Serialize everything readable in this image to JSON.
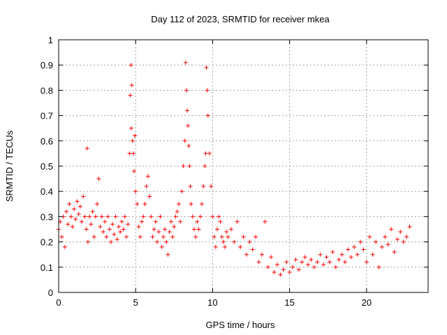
{
  "chart_data": {
    "type": "scatter",
    "title": "Day 112 of 2023, SRMTID for receiver mkea",
    "xlabel": "GPS time / hours",
    "ylabel": "SRMTID / TECUs",
    "xlim": [
      0,
      24
    ],
    "ylim": [
      0,
      1
    ],
    "xticks": [
      0,
      5,
      10,
      15,
      20
    ],
    "xtick_labels": [
      "0",
      "5",
      "10",
      "15",
      "20"
    ],
    "yticks": [
      0,
      0.1,
      0.2,
      0.3,
      0.4,
      0.5,
      0.6,
      0.7,
      0.8,
      0.9,
      1
    ],
    "ytick_labels": [
      "0",
      "0.1",
      "0.2",
      "0.3",
      "0.4",
      "0.5",
      "0.6",
      "0.7",
      "0.8",
      "0.9",
      "1"
    ],
    "grid": true,
    "marker": "+",
    "color": "#ff0000",
    "series": [
      {
        "name": "SRMTID",
        "x": [
          0.0,
          0.1,
          0.2,
          0.3,
          0.4,
          0.5,
          0.6,
          0.7,
          0.8,
          0.9,
          1.0,
          1.1,
          1.2,
          1.3,
          1.4,
          1.5,
          1.6,
          1.7,
          1.8,
          1.85,
          1.9,
          2.0,
          2.1,
          2.2,
          2.3,
          2.4,
          2.5,
          2.6,
          2.7,
          2.8,
          2.9,
          3.0,
          3.1,
          3.2,
          3.3,
          3.4,
          3.5,
          3.6,
          3.7,
          3.8,
          3.9,
          4.0,
          4.1,
          4.2,
          4.3,
          4.4,
          4.5,
          4.6,
          4.65,
          4.7,
          4.72,
          4.75,
          4.8,
          4.85,
          4.9,
          4.95,
          5.0,
          5.1,
          5.2,
          5.3,
          5.4,
          5.5,
          5.6,
          5.7,
          5.8,
          5.9,
          6.0,
          6.1,
          6.2,
          6.3,
          6.4,
          6.5,
          6.6,
          6.7,
          6.8,
          6.9,
          7.0,
          7.1,
          7.2,
          7.3,
          7.4,
          7.5,
          7.6,
          7.7,
          7.8,
          7.9,
          8.0,
          8.1,
          8.2,
          8.25,
          8.3,
          8.35,
          8.4,
          8.45,
          8.5,
          8.55,
          8.6,
          8.7,
          8.8,
          8.9,
          9.0,
          9.1,
          9.2,
          9.3,
          9.4,
          9.5,
          9.55,
          9.6,
          9.65,
          9.7,
          9.8,
          9.9,
          10.0,
          10.1,
          10.2,
          10.3,
          10.4,
          10.5,
          10.6,
          10.7,
          10.8,
          10.9,
          11.0,
          11.2,
          11.4,
          11.6,
          11.8,
          12.0,
          12.2,
          12.4,
          12.6,
          12.8,
          13.0,
          13.2,
          13.4,
          13.6,
          13.8,
          14.0,
          14.2,
          14.4,
          14.6,
          14.8,
          15.0,
          15.2,
          15.4,
          15.6,
          15.8,
          16.0,
          16.2,
          16.4,
          16.6,
          16.8,
          17.0,
          17.2,
          17.4,
          17.6,
          17.8,
          18.0,
          18.2,
          18.4,
          18.6,
          18.8,
          19.0,
          19.2,
          19.4,
          19.6,
          19.8,
          20.0,
          20.2,
          20.4,
          20.6,
          20.8,
          21.0,
          21.2,
          21.4,
          21.6,
          21.8,
          22.0,
          22.2,
          22.4,
          22.6,
          22.8
        ],
        "y": [
          0.25,
          0.28,
          0.22,
          0.3,
          0.18,
          0.32,
          0.27,
          0.35,
          0.3,
          0.26,
          0.33,
          0.29,
          0.36,
          0.31,
          0.34,
          0.28,
          0.38,
          0.3,
          0.25,
          0.57,
          0.2,
          0.3,
          0.27,
          0.32,
          0.22,
          0.3,
          0.35,
          0.45,
          0.26,
          0.3,
          0.24,
          0.28,
          0.22,
          0.3,
          0.25,
          0.2,
          0.27,
          0.23,
          0.3,
          0.21,
          0.26,
          0.24,
          0.28,
          0.25,
          0.3,
          0.22,
          0.27,
          0.55,
          0.78,
          0.9,
          0.65,
          0.82,
          0.6,
          0.55,
          0.48,
          0.62,
          0.4,
          0.35,
          0.26,
          0.22,
          0.28,
          0.3,
          0.35,
          0.42,
          0.46,
          0.38,
          0.3,
          0.22,
          0.25,
          0.28,
          0.2,
          0.24,
          0.3,
          0.18,
          0.22,
          0.25,
          0.2,
          0.15,
          0.24,
          0.28,
          0.22,
          0.26,
          0.3,
          0.32,
          0.35,
          0.28,
          0.4,
          0.5,
          0.6,
          0.91,
          0.8,
          0.72,
          0.66,
          0.58,
          0.5,
          0.42,
          0.35,
          0.3,
          0.25,
          0.22,
          0.28,
          0.25,
          0.3,
          0.35,
          0.42,
          0.5,
          0.55,
          0.89,
          0.8,
          0.7,
          0.55,
          0.42,
          0.3,
          0.22,
          0.18,
          0.25,
          0.3,
          0.28,
          0.22,
          0.2,
          0.18,
          0.24,
          0.22,
          0.25,
          0.2,
          0.28,
          0.18,
          0.22,
          0.15,
          0.2,
          0.17,
          0.22,
          0.12,
          0.15,
          0.28,
          0.1,
          0.14,
          0.08,
          0.11,
          0.07,
          0.09,
          0.12,
          0.08,
          0.1,
          0.13,
          0.09,
          0.12,
          0.14,
          0.11,
          0.13,
          0.1,
          0.12,
          0.15,
          0.11,
          0.14,
          0.12,
          0.16,
          0.1,
          0.13,
          0.15,
          0.12,
          0.17,
          0.14,
          0.18,
          0.15,
          0.2,
          0.17,
          0.12,
          0.22,
          0.15,
          0.2,
          0.1,
          0.18,
          0.22,
          0.19,
          0.25,
          0.16,
          0.21,
          0.24,
          0.2,
          0.22,
          0.26
        ]
      }
    ]
  }
}
